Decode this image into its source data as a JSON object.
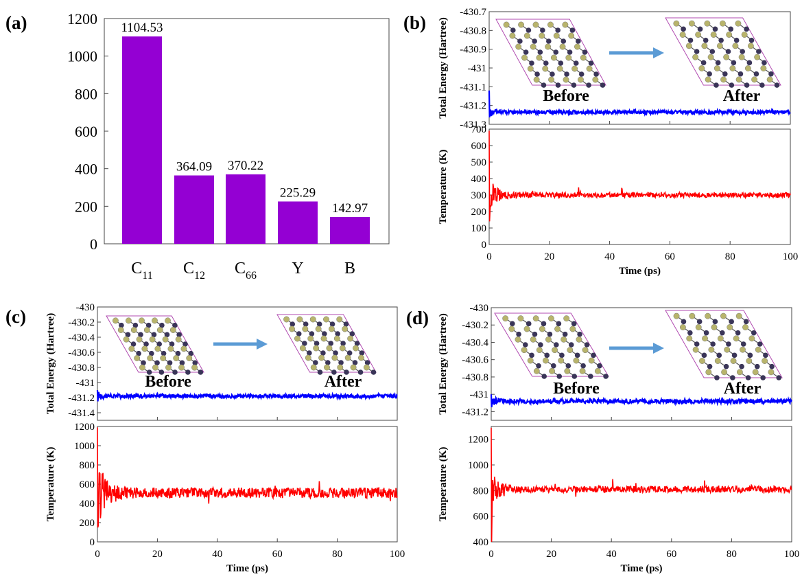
{
  "chart_data": [
    {
      "panel": "(a)",
      "type": "bar",
      "categories": [
        {
          "main": "C",
          "sub": "11"
        },
        {
          "main": "C",
          "sub": "12"
        },
        {
          "main": "C",
          "sub": "66"
        },
        {
          "main": "Y",
          "sub": ""
        },
        {
          "main": "B",
          "sub": ""
        }
      ],
      "values": [
        1104.53,
        364.09,
        370.22,
        225.29,
        142.97
      ],
      "value_labels": [
        "1104.53",
        "364.09",
        "370.22",
        "225.29",
        "142.97"
      ],
      "ylim": [
        0,
        1200
      ],
      "yticks": [
        0,
        200,
        400,
        600,
        800,
        1000,
        1200
      ],
      "bar_color": "#9400d3"
    },
    {
      "panel": "(b)",
      "type": "line",
      "xlabel": "Time (ps)",
      "xlim": [
        0,
        100
      ],
      "xticks": [
        0,
        20,
        40,
        60,
        80,
        100
      ],
      "energy": {
        "ylabel": "Total Energy (Hartree)",
        "ylim": [
          -431.3,
          -430.7
        ],
        "yticks": [
          "-430.7",
          "-430.8",
          "-430.9",
          "-431",
          "-431.1",
          "-431.2",
          "-431.3"
        ],
        "color": "#0000ff",
        "mean": -431.235,
        "noise": 0.01,
        "initial": -431.12
      },
      "temperature": {
        "ylabel": "Temperature (K)",
        "ylim": [
          0,
          700
        ],
        "yticks": [
          "0",
          "100",
          "200",
          "300",
          "400",
          "500",
          "600",
          "700"
        ],
        "color": "#ff0000",
        "mean": 300,
        "noise": 15,
        "initial_peak": 690,
        "initial_low": 140
      },
      "inset": {
        "before": "Before",
        "after": "After"
      }
    },
    {
      "panel": "(c)",
      "type": "line",
      "xlabel": "Time (ps)",
      "xlim": [
        0,
        100
      ],
      "xticks": [
        0,
        20,
        40,
        60,
        80,
        100
      ],
      "energy": {
        "ylabel": "Total Energy (Hartree)",
        "ylim": [
          -431.5,
          -430.0
        ],
        "yticks": [
          "-430",
          "-430.2",
          "-430.4",
          "-430.6",
          "-430.8",
          "-431",
          "-431.2",
          "-431.4"
        ],
        "color": "#0000ff",
        "mean": -431.18,
        "noise": 0.025,
        "initial": -431.1
      },
      "temperature": {
        "ylabel": "Temperature (K)",
        "ylim": [
          0,
          1200
        ],
        "yticks": [
          "0",
          "200",
          "400",
          "600",
          "800",
          "1000",
          "1200"
        ],
        "color": "#ff0000",
        "mean": 510,
        "noise": 55,
        "initial_peak": 1190,
        "initial_low": 150
      },
      "inset": {
        "before": "Before",
        "after": "After"
      }
    },
    {
      "panel": "(d)",
      "type": "line",
      "xlabel": "Time (ps)",
      "xlim": [
        0,
        100
      ],
      "xticks": [
        0,
        20,
        40,
        60,
        80,
        100
      ],
      "energy": {
        "ylabel": "Total Energy (Hartree)",
        "ylim": [
          -431.3,
          -430.0
        ],
        "yticks": [
          "-430",
          "-430.2",
          "-430.4",
          "-430.6",
          "-430.8",
          "-431",
          "-431.2"
        ],
        "color": "#0000ff",
        "mean": -431.08,
        "noise": 0.025,
        "initial": -431.0
      },
      "temperature": {
        "ylabel": "Temperature (K)",
        "ylim": [
          400,
          1300
        ],
        "yticks": [
          "400",
          "600",
          "800",
          "1000",
          "1200"
        ],
        "color": "#ff0000",
        "mean": 810,
        "noise": 25,
        "initial_peak": 1290,
        "initial_low": 400
      },
      "inset": {
        "before": "Before",
        "after": "After"
      }
    }
  ],
  "colors": {
    "arrow": "#5b9bd5",
    "lattice_frame": "#b04ab0",
    "atom_light": "#b8b46c",
    "atom_dark": "#3a3558"
  }
}
